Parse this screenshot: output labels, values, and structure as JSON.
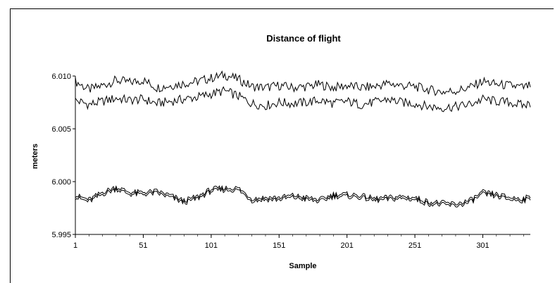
{
  "chart_data": {
    "type": "line",
    "title": "Distance of flight",
    "xlabel": "Sample",
    "ylabel": "meters",
    "xlim": [
      1,
      336
    ],
    "ylim": [
      5.995,
      6.01
    ],
    "x_ticks": [
      1,
      51,
      101,
      151,
      201,
      251,
      301
    ],
    "y_ticks": [
      "5.995",
      "6.000",
      "6.005",
      "6.010"
    ],
    "grid": false,
    "legend": "none",
    "series": [
      {
        "x": [
          1,
          11,
          21,
          31,
          41,
          51,
          61,
          71,
          81,
          91,
          101,
          111,
          121,
          131,
          141,
          151,
          161,
          171,
          181,
          191,
          201,
          211,
          221,
          231,
          241,
          251,
          261,
          271,
          281,
          291,
          301,
          311,
          321,
          331,
          336
        ],
        "values": [
          6.0095,
          6.0087,
          6.0091,
          6.0096,
          6.0094,
          6.0096,
          6.0089,
          6.0091,
          6.0093,
          6.0095,
          6.0098,
          6.0101,
          6.0097,
          6.009,
          6.0089,
          6.0091,
          6.0089,
          6.009,
          6.0092,
          6.0089,
          6.0091,
          6.0089,
          6.009,
          6.0093,
          6.0091,
          6.009,
          6.0087,
          6.0085,
          6.0086,
          6.0089,
          6.0095,
          6.0092,
          6.0091,
          6.0089,
          6.0091
        ],
        "color": "#000000"
      },
      {
        "x": [
          1,
          11,
          21,
          31,
          41,
          51,
          61,
          71,
          81,
          91,
          101,
          111,
          121,
          131,
          141,
          151,
          161,
          171,
          181,
          191,
          201,
          211,
          221,
          231,
          241,
          251,
          261,
          271,
          281,
          291,
          301,
          311,
          321,
          331,
          336
        ],
        "values": [
          6.0077,
          6.0073,
          6.0076,
          6.0079,
          6.0077,
          6.0078,
          6.0074,
          6.0076,
          6.0078,
          6.008,
          6.0083,
          6.0086,
          6.0081,
          6.0074,
          6.0072,
          6.0075,
          6.0074,
          6.0075,
          6.0077,
          6.0074,
          6.0076,
          6.0073,
          6.0075,
          6.0078,
          6.0075,
          6.0074,
          6.0071,
          6.007,
          6.0071,
          6.0073,
          6.0078,
          6.0076,
          6.0075,
          6.0072,
          6.0074
        ],
        "color": "#000000"
      },
      {
        "x": [
          1,
          11,
          21,
          31,
          41,
          51,
          61,
          71,
          81,
          91,
          101,
          111,
          121,
          131,
          141,
          151,
          161,
          171,
          181,
          191,
          201,
          211,
          221,
          231,
          241,
          251,
          261,
          271,
          281,
          291,
          301,
          311,
          321,
          331,
          336
        ],
        "values": [
          5.9987,
          5.9983,
          5.999,
          5.9995,
          5.999,
          5.999,
          5.9991,
          5.9987,
          5.9982,
          5.9986,
          5.9993,
          5.9994,
          5.9994,
          5.9984,
          5.9985,
          5.9985,
          5.9987,
          5.9985,
          5.9983,
          5.9988,
          5.9988,
          5.9987,
          5.9984,
          5.9985,
          5.9986,
          5.9985,
          5.9981,
          5.998,
          5.9979,
          5.9982,
          5.999,
          5.9988,
          5.9985,
          5.9984,
          5.9986
        ],
        "color": "#000000"
      },
      {
        "x": [
          1,
          11,
          21,
          31,
          41,
          51,
          61,
          71,
          81,
          91,
          101,
          111,
          121,
          131,
          141,
          151,
          161,
          171,
          181,
          191,
          201,
          211,
          221,
          231,
          241,
          251,
          261,
          271,
          281,
          291,
          301,
          311,
          321,
          331,
          336
        ],
        "values": [
          5.9985,
          5.9981,
          5.9988,
          5.9993,
          5.9988,
          5.9988,
          5.9989,
          5.9985,
          5.998,
          5.9984,
          5.9991,
          5.9992,
          5.9992,
          5.9982,
          5.9983,
          5.9983,
          5.9985,
          5.9983,
          5.9981,
          5.9986,
          5.9986,
          5.9985,
          5.9982,
          5.9983,
          5.9984,
          5.9983,
          5.9979,
          5.9978,
          5.9977,
          5.998,
          5.9988,
          5.9986,
          5.9983,
          5.9982,
          5.9984
        ],
        "color": "#000000"
      }
    ]
  }
}
